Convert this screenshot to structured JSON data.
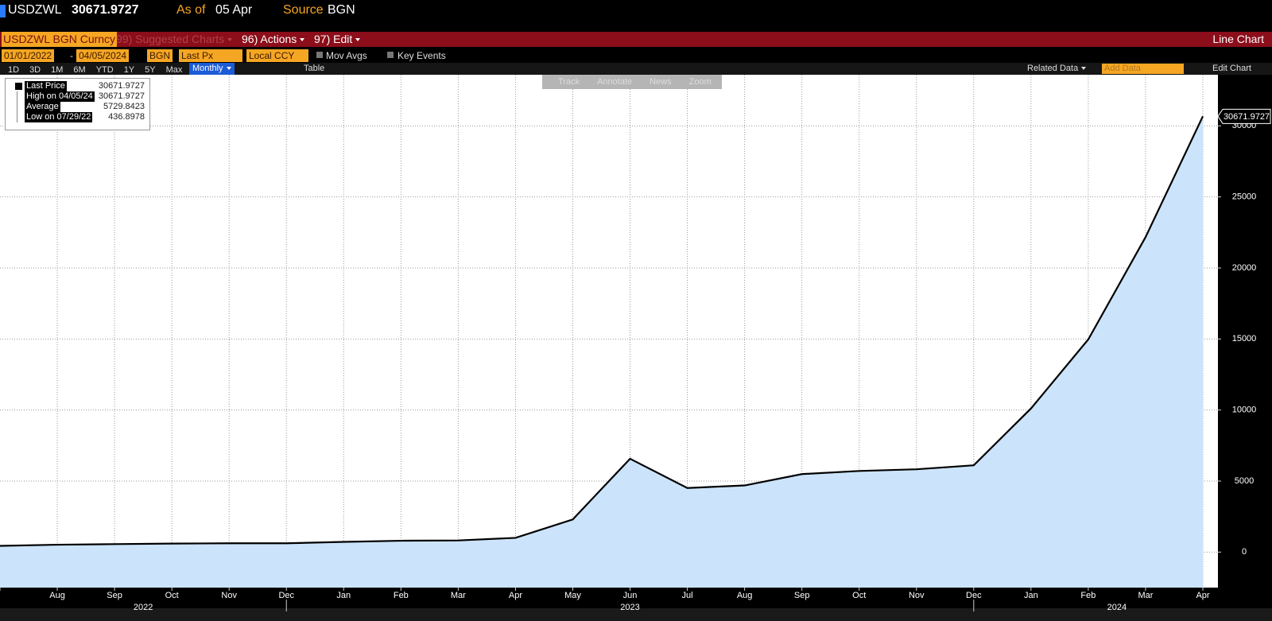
{
  "header": {
    "ticker": "USDZWL",
    "price": "30671.9727",
    "as_of_label": "As of",
    "as_of": "05 Apr",
    "source_label": "Source",
    "source": "BGN"
  },
  "menu_bar": {
    "security": "USDZWL BGN Curncy",
    "suggested": "99) Suggested Charts",
    "actions": "96) Actions",
    "edit": "97) Edit",
    "chart_type": "Line Chart"
  },
  "options": {
    "start_date": "01/01/2022",
    "date_separator": "-",
    "end_date": "04/05/2024",
    "source": "BGN",
    "field": "Last Px",
    "currency": "Local CCY",
    "mov_avgs": "Mov Avgs",
    "key_events": "Key Events"
  },
  "periods": [
    "1D",
    "3D",
    "1M",
    "6M",
    "YTD",
    "1Y",
    "5Y",
    "Max"
  ],
  "frequency": "Monthly",
  "table_button": "Table",
  "related_data": "Related Data",
  "add_data": "Add Data",
  "edit_chart": "Edit Chart",
  "tools": [
    "Track",
    "Annotate",
    "News",
    "Zoom"
  ],
  "legend": [
    {
      "label": "Last Price",
      "value": "30671.9727"
    },
    {
      "label": "High on",
      "date": "04/05/24",
      "value": "30671.9727"
    },
    {
      "label": "Average",
      "value": "5729.8423"
    },
    {
      "label": "Low on",
      "date": "07/29/22",
      "value": "436.8978"
    }
  ],
  "chart_data": {
    "type": "area",
    "categories": [
      null,
      "Aug",
      "Sep",
      "Oct",
      "Nov",
      "Dec",
      "Jan",
      "Feb",
      "Mar",
      "Apr",
      "May",
      "Jun",
      "Jul",
      "Aug",
      "Sep",
      "Oct",
      "Nov",
      "Dec",
      "Jan",
      "Feb",
      "Mar",
      "Apr"
    ],
    "year_labels": [
      "2022",
      "2023",
      "2024"
    ],
    "series": [
      {
        "name": "Last Price",
        "color": "#000000",
        "fill": "#cce4fb",
        "values": [
          436.8978,
          520,
          560,
          600,
          620,
          620,
          720,
          800,
          820,
          1000,
          2300,
          6570,
          4510,
          4690,
          5490,
          5710,
          5830,
          6110,
          10110,
          14970,
          22170,
          30671.9727
        ]
      }
    ],
    "ylim": [
      -2500,
      33600
    ],
    "yticks": [
      0,
      5000,
      10000,
      15000,
      20000,
      25000,
      30000
    ],
    "grid": true
  }
}
